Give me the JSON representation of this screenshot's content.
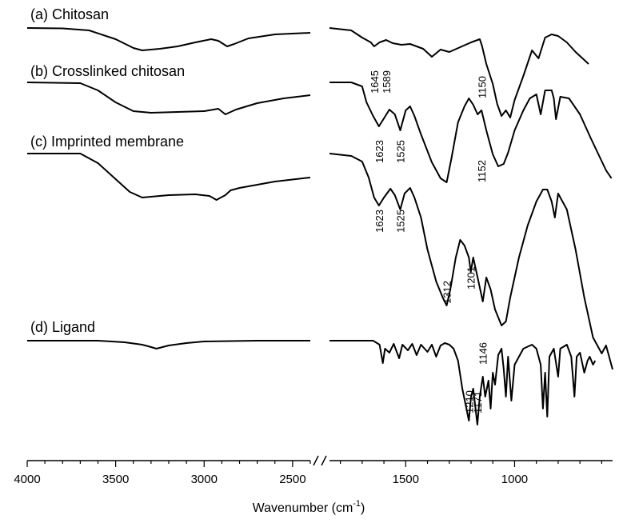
{
  "chart_data": {
    "type": "line",
    "xlabel": "Wavenumber (cm",
    "xlabel_sup": "-1",
    "xlabel_end": ")",
    "x_axis": {
      "segments": [
        [
          4000,
          2400
        ],
        [
          1850,
          550
        ]
      ],
      "break_mark": "//",
      "ticks": [
        {
          "value": 4000,
          "label": "4000"
        },
        {
          "value": 3500,
          "label": "3500"
        },
        {
          "value": 3000,
          "label": "3000"
        },
        {
          "value": 2500,
          "label": "2500"
        },
        {
          "value": 1500,
          "label": "1500"
        },
        {
          "value": 1000,
          "label": "1000"
        }
      ]
    },
    "series": [
      {
        "name": "(a) Chitosan",
        "annotations": [
          "1645",
          "1589",
          "1150"
        ],
        "left": [
          [
            4000,
            0
          ],
          [
            3800,
            -0.5
          ],
          [
            3650,
            -3
          ],
          [
            3500,
            -14
          ],
          [
            3400,
            -25
          ],
          [
            3350,
            -28
          ],
          [
            3250,
            -26
          ],
          [
            3150,
            -23
          ],
          [
            3050,
            -18
          ],
          [
            2960,
            -14
          ],
          [
            2920,
            -16
          ],
          [
            2870,
            -23
          ],
          [
            2830,
            -20
          ],
          [
            2750,
            -13
          ],
          [
            2600,
            -8
          ],
          [
            2400,
            -6
          ]
        ],
        "right": [
          [
            1850,
            0
          ],
          [
            1750,
            -3
          ],
          [
            1700,
            -12
          ],
          [
            1660,
            -18
          ],
          [
            1645,
            -23
          ],
          [
            1620,
            -18
          ],
          [
            1590,
            -15
          ],
          [
            1560,
            -19
          ],
          [
            1520,
            -21
          ],
          [
            1480,
            -20
          ],
          [
            1420,
            -26
          ],
          [
            1380,
            -36
          ],
          [
            1340,
            -27
          ],
          [
            1300,
            -30
          ],
          [
            1250,
            -24
          ],
          [
            1200,
            -18
          ],
          [
            1160,
            -14
          ],
          [
            1150,
            -22
          ],
          [
            1130,
            -45
          ],
          [
            1100,
            -70
          ],
          [
            1080,
            -95
          ],
          [
            1060,
            -110
          ],
          [
            1040,
            -103
          ],
          [
            1020,
            -112
          ],
          [
            1000,
            -90
          ],
          [
            960,
            -60
          ],
          [
            920,
            -28
          ],
          [
            890,
            -38
          ],
          [
            860,
            -12
          ],
          [
            830,
            -8
          ],
          [
            800,
            -10
          ],
          [
            760,
            -18
          ],
          [
            720,
            -30
          ],
          [
            680,
            -40
          ],
          [
            660,
            -45
          ]
        ]
      },
      {
        "name": "(b) Crosslinked chitosan",
        "annotations": [
          "1623",
          "1525",
          "1152"
        ],
        "left": [
          [
            4000,
            0
          ],
          [
            3700,
            -1
          ],
          [
            3600,
            -10
          ],
          [
            3500,
            -25
          ],
          [
            3400,
            -36
          ],
          [
            3300,
            -38
          ],
          [
            3150,
            -37
          ],
          [
            3000,
            -36
          ],
          [
            2920,
            -33
          ],
          [
            2880,
            -40
          ],
          [
            2820,
            -34
          ],
          [
            2700,
            -26
          ],
          [
            2550,
            -20
          ],
          [
            2400,
            -16
          ]
        ],
        "right": [
          [
            1850,
            0
          ],
          [
            1750,
            0
          ],
          [
            1700,
            -5
          ],
          [
            1680,
            -25
          ],
          [
            1650,
            -42
          ],
          [
            1623,
            -55
          ],
          [
            1600,
            -45
          ],
          [
            1575,
            -34
          ],
          [
            1550,
            -40
          ],
          [
            1525,
            -60
          ],
          [
            1500,
            -35
          ],
          [
            1480,
            -30
          ],
          [
            1460,
            -42
          ],
          [
            1430,
            -65
          ],
          [
            1380,
            -100
          ],
          [
            1340,
            -120
          ],
          [
            1312,
            -125
          ],
          [
            1290,
            -95
          ],
          [
            1260,
            -50
          ],
          [
            1230,
            -30
          ],
          [
            1210,
            -20
          ],
          [
            1190,
            -28
          ],
          [
            1170,
            -40
          ],
          [
            1152,
            -35
          ],
          [
            1130,
            -60
          ],
          [
            1100,
            -90
          ],
          [
            1075,
            -105
          ],
          [
            1050,
            -102
          ],
          [
            1030,
            -88
          ],
          [
            1000,
            -60
          ],
          [
            960,
            -35
          ],
          [
            930,
            -20
          ],
          [
            900,
            -15
          ],
          [
            880,
            -40
          ],
          [
            860,
            -10
          ],
          [
            830,
            -10
          ],
          [
            820,
            -20
          ],
          [
            810,
            -46
          ],
          [
            790,
            -18
          ],
          [
            750,
            -20
          ],
          [
            700,
            -40
          ],
          [
            650,
            -70
          ],
          [
            580,
            -110
          ],
          [
            555,
            -120
          ]
        ]
      },
      {
        "name": "(c) Imprinted membrane",
        "annotations": [
          "1623",
          "1525",
          "1312",
          "1201",
          "1146"
        ],
        "left": [
          [
            4000,
            0
          ],
          [
            3700,
            0
          ],
          [
            3600,
            -12
          ],
          [
            3500,
            -32
          ],
          [
            3420,
            -48
          ],
          [
            3350,
            -55
          ],
          [
            3200,
            -52
          ],
          [
            3050,
            -51
          ],
          [
            2970,
            -53
          ],
          [
            2930,
            -58
          ],
          [
            2880,
            -52
          ],
          [
            2850,
            -46
          ],
          [
            2800,
            -43
          ],
          [
            2600,
            -35
          ],
          [
            2400,
            -30
          ]
        ],
        "right": [
          [
            1850,
            0
          ],
          [
            1750,
            -3
          ],
          [
            1700,
            -10
          ],
          [
            1670,
            -30
          ],
          [
            1645,
            -55
          ],
          [
            1623,
            -65
          ],
          [
            1600,
            -55
          ],
          [
            1570,
            -44
          ],
          [
            1550,
            -52
          ],
          [
            1525,
            -70
          ],
          [
            1505,
            -50
          ],
          [
            1480,
            -43
          ],
          [
            1460,
            -55
          ],
          [
            1430,
            -80
          ],
          [
            1400,
            -120
          ],
          [
            1360,
            -160
          ],
          [
            1330,
            -180
          ],
          [
            1312,
            -190
          ],
          [
            1295,
            -170
          ],
          [
            1270,
            -130
          ],
          [
            1250,
            -108
          ],
          [
            1230,
            -115
          ],
          [
            1210,
            -130
          ],
          [
            1201,
            -148
          ],
          [
            1190,
            -130
          ],
          [
            1170,
            -155
          ],
          [
            1146,
            -185
          ],
          [
            1130,
            -155
          ],
          [
            1110,
            -170
          ],
          [
            1090,
            -195
          ],
          [
            1060,
            -215
          ],
          [
            1040,
            -210
          ],
          [
            1020,
            -180
          ],
          [
            980,
            -130
          ],
          [
            940,
            -90
          ],
          [
            900,
            -60
          ],
          [
            870,
            -45
          ],
          [
            850,
            -45
          ],
          [
            830,
            -60
          ],
          [
            815,
            -80
          ],
          [
            800,
            -50
          ],
          [
            760,
            -70
          ],
          [
            720,
            -120
          ],
          [
            680,
            -180
          ],
          [
            640,
            -230
          ],
          [
            600,
            -250
          ],
          [
            580,
            -240
          ],
          [
            560,
            -260
          ],
          [
            550,
            -270
          ]
        ]
      },
      {
        "name": "(d) Ligand",
        "annotations": [
          "1210",
          "1171"
        ],
        "left": [
          [
            4000,
            0
          ],
          [
            3600,
            0
          ],
          [
            3450,
            -2
          ],
          [
            3350,
            -5
          ],
          [
            3300,
            -8
          ],
          [
            3270,
            -10
          ],
          [
            3200,
            -6
          ],
          [
            3100,
            -3
          ],
          [
            3000,
            -1
          ],
          [
            2700,
            0
          ],
          [
            2400,
            0
          ]
        ],
        "right": [
          [
            1850,
            0
          ],
          [
            1650,
            0
          ],
          [
            1620,
            -5
          ],
          [
            1605,
            -28
          ],
          [
            1595,
            -10
          ],
          [
            1575,
            -15
          ],
          [
            1555,
            -4
          ],
          [
            1530,
            -22
          ],
          [
            1515,
            -5
          ],
          [
            1490,
            -12
          ],
          [
            1470,
            -4
          ],
          [
            1450,
            -18
          ],
          [
            1430,
            -5
          ],
          [
            1400,
            -14
          ],
          [
            1380,
            -5
          ],
          [
            1360,
            -20
          ],
          [
            1340,
            -6
          ],
          [
            1320,
            -3
          ],
          [
            1300,
            -5
          ],
          [
            1280,
            -10
          ],
          [
            1260,
            -25
          ],
          [
            1240,
            -60
          ],
          [
            1225,
            -80
          ],
          [
            1210,
            -100
          ],
          [
            1200,
            -70
          ],
          [
            1190,
            -60
          ],
          [
            1171,
            -105
          ],
          [
            1160,
            -70
          ],
          [
            1146,
            -45
          ],
          [
            1135,
            -70
          ],
          [
            1120,
            -50
          ],
          [
            1110,
            -85
          ],
          [
            1100,
            -40
          ],
          [
            1090,
            -55
          ],
          [
            1075,
            -18
          ],
          [
            1060,
            -10
          ],
          [
            1050,
            -35
          ],
          [
            1040,
            -70
          ],
          [
            1030,
            -20
          ],
          [
            1015,
            -75
          ],
          [
            1000,
            -30
          ],
          [
            960,
            -10
          ],
          [
            920,
            -5
          ],
          [
            900,
            -10
          ],
          [
            880,
            -30
          ],
          [
            870,
            -85
          ],
          [
            860,
            -40
          ],
          [
            850,
            -95
          ],
          [
            840,
            -20
          ],
          [
            820,
            -10
          ],
          [
            800,
            -45
          ],
          [
            790,
            -10
          ],
          [
            760,
            -5
          ],
          [
            740,
            -20
          ],
          [
            725,
            -70
          ],
          [
            715,
            -20
          ],
          [
            700,
            -15
          ],
          [
            680,
            -40
          ],
          [
            665,
            -25
          ],
          [
            655,
            -20
          ],
          [
            640,
            -30
          ],
          [
            630,
            -25
          ]
        ]
      }
    ]
  }
}
